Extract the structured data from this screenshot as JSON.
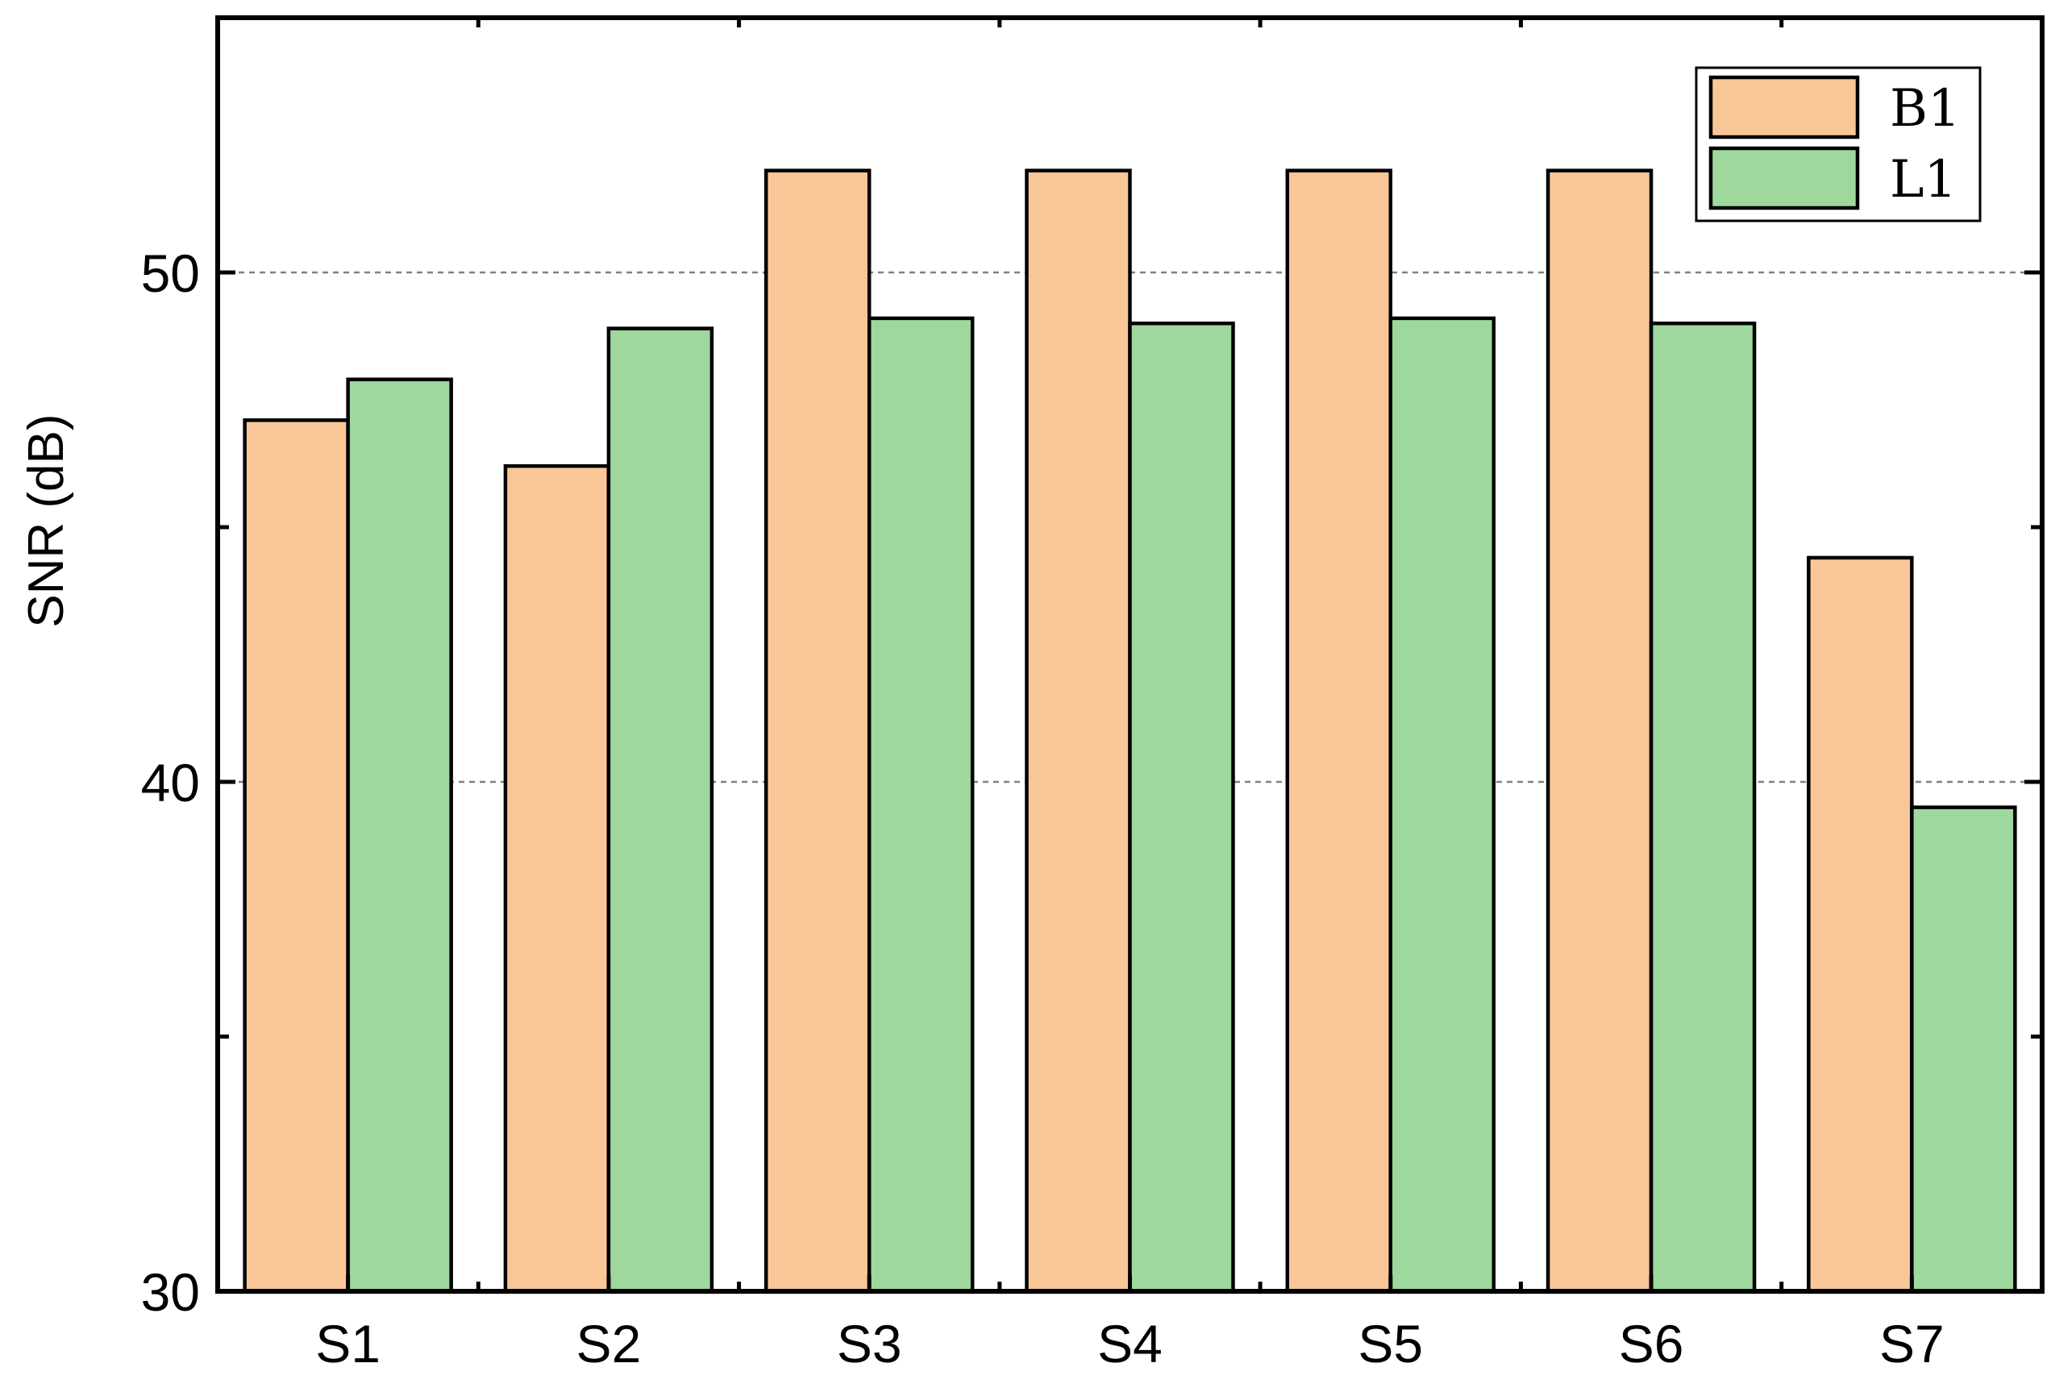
{
  "chart_data": {
    "type": "bar",
    "categories": [
      "S1",
      "S2",
      "S3",
      "S4",
      "S5",
      "S6",
      "S7"
    ],
    "series": [
      {
        "name": "B1",
        "color": "#f9c797",
        "values": [
          47.1,
          46.2,
          52.0,
          52.0,
          52.0,
          52.0,
          44.4
        ]
      },
      {
        "name": "L1",
        "color": "#9ed89d",
        "values": [
          47.9,
          48.9,
          49.1,
          49.0,
          49.1,
          49.0,
          39.5
        ]
      }
    ],
    "xlabel": "",
    "ylabel": "SNR (dB)",
    "ylim": [
      30,
      55
    ],
    "yticks": [
      30,
      40,
      50
    ],
    "ytick_labels": [
      "30",
      "40",
      "50"
    ],
    "grid": "horizontal dashed at major ticks",
    "legend_position": "top-right"
  }
}
